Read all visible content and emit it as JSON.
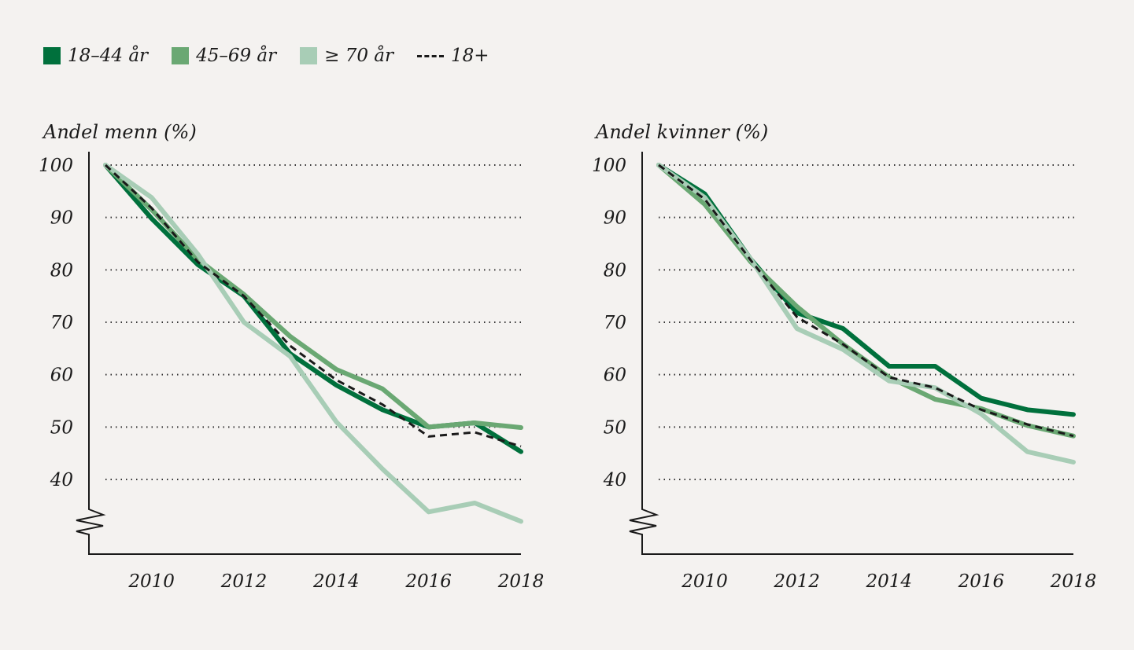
{
  "legend": [
    {
      "label": "18–44 år",
      "color": "#00703c",
      "style": "solid"
    },
    {
      "label": "45–69 år",
      "color": "#6aa873",
      "style": "solid"
    },
    {
      "label": "≥ 70 år",
      "color": "#a8cdb6",
      "style": "solid"
    },
    {
      "label": "18+",
      "color": "#1a1a1a",
      "style": "dashed"
    }
  ],
  "chart_data": [
    {
      "type": "line",
      "title": "Andel menn (%)",
      "x": [
        2009,
        2010,
        2011,
        2012,
        2013,
        2014,
        2015,
        2016,
        2017,
        2018
      ],
      "xticks": [
        "2010",
        "2012",
        "2014",
        "2016",
        "2018"
      ],
      "yticks": [
        "100",
        "90",
        "80",
        "70",
        "60",
        "50",
        "40"
      ],
      "ylim": [
        30,
        100
      ],
      "y_axis_break": true,
      "grid": "horizontal dotted",
      "series": [
        {
          "name": "18–44 år",
          "values": [
            100,
            89.8,
            81,
            75,
            64,
            58,
            53.3,
            50,
            50.8,
            45.3
          ]
        },
        {
          "name": "45–69 år",
          "values": [
            100,
            91.5,
            82,
            75.3,
            67.3,
            61,
            57.3,
            50,
            50.8,
            49.9
          ]
        },
        {
          "name": "≥ 70 år",
          "values": [
            100,
            93.8,
            83,
            70,
            63.5,
            51,
            42,
            33.8,
            35.5,
            32
          ]
        },
        {
          "name": "18+",
          "values": [
            100,
            91.8,
            81.5,
            75,
            65.5,
            59,
            54.3,
            48.2,
            49,
            46.3
          ]
        }
      ]
    },
    {
      "type": "line",
      "title": "Andel kvinner (%)",
      "x": [
        2009,
        2010,
        2011,
        2012,
        2013,
        2014,
        2015,
        2016,
        2017,
        2018
      ],
      "xticks": [
        "2010",
        "2012",
        "2014",
        "2016",
        "2018"
      ],
      "yticks": [
        "100",
        "90",
        "80",
        "70",
        "60",
        "50",
        "40"
      ],
      "ylim": [
        30,
        100
      ],
      "y_axis_break": true,
      "grid": "horizontal dotted",
      "series": [
        {
          "name": "18–44 år",
          "values": [
            100,
            94.5,
            82,
            71.8,
            68.8,
            61.6,
            61.6,
            55.5,
            53.3,
            52.4
          ]
        },
        {
          "name": "45–69 år",
          "values": [
            100,
            92.5,
            81.5,
            73,
            65.8,
            59.5,
            55.3,
            53.5,
            50.3,
            48.3
          ]
        },
        {
          "name": "≥ 70 år",
          "values": [
            100,
            93.8,
            82,
            68.8,
            64.8,
            58.8,
            57.5,
            52.5,
            45.3,
            43.3
          ]
        },
        {
          "name": "18+",
          "values": [
            100,
            93.5,
            81.8,
            71,
            65.8,
            59.5,
            57.5,
            53.3,
            50.5,
            48.3
          ]
        }
      ]
    }
  ]
}
